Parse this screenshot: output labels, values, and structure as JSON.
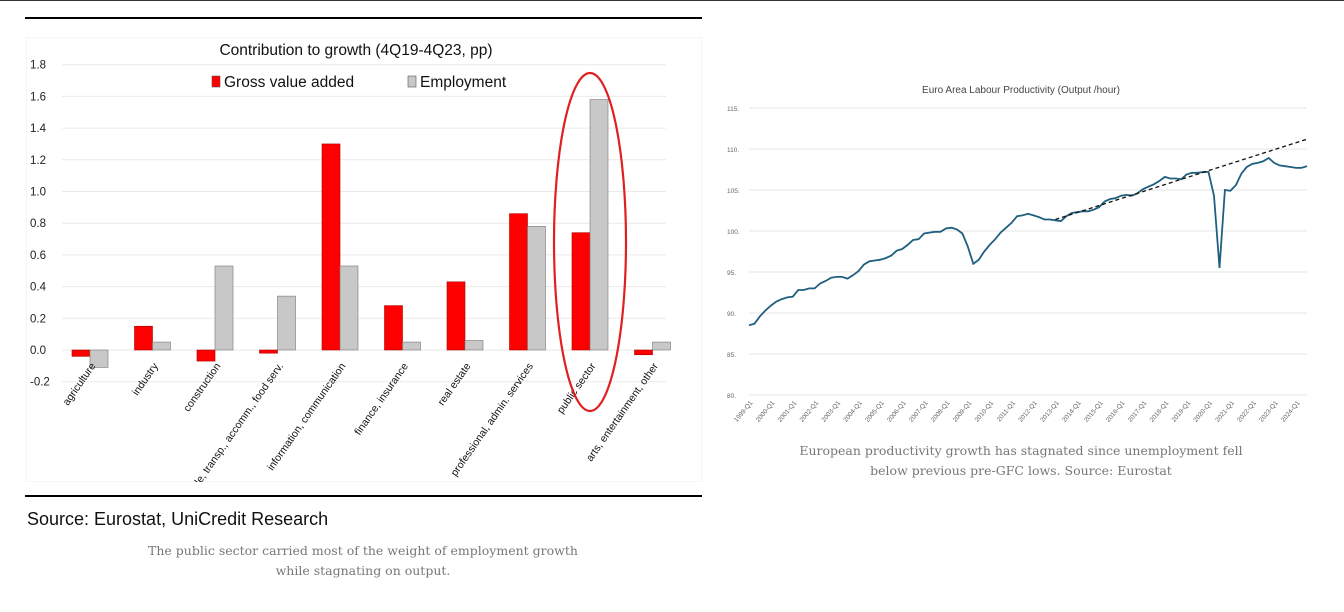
{
  "left_figure": {
    "source": "Source: Eurostat, UniCredit Research",
    "caption": "The public sector carried most of the weight of employment growth while stagnating on output."
  },
  "right_figure": {
    "caption": "European productivity growth has stagnated since unemployment fell below previous pre-GFC lows. Source: Eurostat"
  },
  "chart_data": [
    {
      "type": "bar",
      "title": "Contribution to growth (4Q19-4Q23, pp)",
      "categories": [
        "agriculture",
        "industry",
        "construction",
        "trade, transp., accomm., food serv.",
        "information, communication",
        "finance, insurance",
        "real estate",
        "professional, admin. services",
        "public sector",
        "arts, entertainment, other"
      ],
      "series": [
        {
          "name": "Gross value added",
          "color": "#ff0000",
          "values": [
            -0.04,
            0.15,
            -0.07,
            -0.02,
            1.3,
            0.28,
            0.43,
            0.86,
            0.74,
            -0.03
          ]
        },
        {
          "name": "Employment",
          "color": "#c8c8c8",
          "values": [
            -0.11,
            0.05,
            0.53,
            0.34,
            0.53,
            0.05,
            0.06,
            0.78,
            1.58,
            0.05
          ]
        }
      ],
      "ylim": [
        -0.2,
        1.8
      ],
      "yticks": [
        "-0.2",
        "0.0",
        "0.2",
        "0.4",
        "0.6",
        "0.8",
        "1.0",
        "1.2",
        "1.4",
        "1.6",
        "1.8"
      ],
      "legend": "top-center",
      "highlight": "public sector",
      "highlight_color": "#e02020",
      "grid": true
    },
    {
      "type": "line",
      "title": "Euro Area Labour Productivity (Output /hour)",
      "ylim": [
        80,
        115
      ],
      "yticks": [
        "80.",
        "85.",
        "90.",
        "95.",
        "100.",
        "105.",
        "110.",
        "115."
      ],
      "xticks": [
        "1999-Q1",
        "2000-Q1",
        "2001-Q1",
        "2002-Q1",
        "2003-Q1",
        "2004-Q1",
        "2005-Q1",
        "2006-Q1",
        "2007-Q1",
        "2008-Q1",
        "2009-Q1",
        "2010-Q1",
        "2011-Q1",
        "2012-Q1",
        "2013-Q1",
        "2014-Q1",
        "2015-Q1",
        "2016-Q1",
        "2017-Q1",
        "2018-Q1",
        "2019-Q1",
        "2020-Q1",
        "2021-Q1",
        "2022-Q1",
        "2023-Q1",
        "2024-Q1"
      ],
      "series": [
        {
          "name": "Labour productivity",
          "color": "#1f5f7f",
          "points": [
            [
              1999.0,
              88.5
            ],
            [
              1999.25,
              88.7
            ],
            [
              1999.5,
              89.6
            ],
            [
              1999.75,
              90.3
            ],
            [
              2000.0,
              90.9
            ],
            [
              2000.25,
              91.4
            ],
            [
              2000.5,
              91.7
            ],
            [
              2000.75,
              91.9
            ],
            [
              2001.0,
              92.0
            ],
            [
              2001.25,
              92.8
            ],
            [
              2001.5,
              92.8
            ],
            [
              2001.75,
              93.0
            ],
            [
              2002.0,
              93.0
            ],
            [
              2002.25,
              93.6
            ],
            [
              2002.5,
              93.9
            ],
            [
              2002.75,
              94.3
            ],
            [
              2003.0,
              94.4
            ],
            [
              2003.25,
              94.4
            ],
            [
              2003.5,
              94.2
            ],
            [
              2003.75,
              94.6
            ],
            [
              2004.0,
              95.1
            ],
            [
              2004.25,
              95.9
            ],
            [
              2004.5,
              96.3
            ],
            [
              2004.75,
              96.4
            ],
            [
              2005.0,
              96.5
            ],
            [
              2005.25,
              96.7
            ],
            [
              2005.5,
              97.0
            ],
            [
              2005.75,
              97.6
            ],
            [
              2006.0,
              97.8
            ],
            [
              2006.25,
              98.3
            ],
            [
              2006.5,
              98.9
            ],
            [
              2006.75,
              99.0
            ],
            [
              2007.0,
              99.7
            ],
            [
              2007.25,
              99.8
            ],
            [
              2007.5,
              99.9
            ],
            [
              2007.75,
              99.9
            ],
            [
              2008.0,
              100.3
            ],
            [
              2008.25,
              100.4
            ],
            [
              2008.5,
              100.2
            ],
            [
              2008.75,
              99.7
            ],
            [
              2009.0,
              98.1
            ],
            [
              2009.25,
              96.0
            ],
            [
              2009.5,
              96.5
            ],
            [
              2009.75,
              97.5
            ],
            [
              2010.0,
              98.3
            ],
            [
              2010.25,
              99.0
            ],
            [
              2010.5,
              99.8
            ],
            [
              2010.75,
              100.4
            ],
            [
              2011.0,
              101.0
            ],
            [
              2011.25,
              101.8
            ],
            [
              2011.5,
              101.9
            ],
            [
              2011.75,
              102.1
            ],
            [
              2012.0,
              101.9
            ],
            [
              2012.25,
              101.7
            ],
            [
              2012.5,
              101.4
            ],
            [
              2012.75,
              101.4
            ],
            [
              2013.0,
              101.3
            ],
            [
              2013.25,
              101.2
            ],
            [
              2013.5,
              101.8
            ],
            [
              2013.75,
              102.2
            ],
            [
              2014.0,
              102.3
            ],
            [
              2014.25,
              102.4
            ],
            [
              2014.5,
              102.4
            ],
            [
              2014.75,
              102.6
            ],
            [
              2015.0,
              102.9
            ],
            [
              2015.25,
              103.6
            ],
            [
              2015.5,
              103.9
            ],
            [
              2015.75,
              104.0
            ],
            [
              2016.0,
              104.3
            ],
            [
              2016.25,
              104.4
            ],
            [
              2016.5,
              104.3
            ],
            [
              2016.75,
              104.6
            ],
            [
              2017.0,
              105.1
            ],
            [
              2017.25,
              105.4
            ],
            [
              2017.5,
              105.7
            ],
            [
              2017.75,
              106.1
            ],
            [
              2018.0,
              106.6
            ],
            [
              2018.25,
              106.4
            ],
            [
              2018.5,
              106.4
            ],
            [
              2018.75,
              106.3
            ],
            [
              2019.0,
              106.9
            ],
            [
              2019.25,
              107.1
            ],
            [
              2019.5,
              107.1
            ],
            [
              2019.75,
              107.2
            ],
            [
              2020.0,
              107.2
            ],
            [
              2020.25,
              104.3
            ],
            [
              2020.5,
              95.5
            ],
            [
              2020.75,
              105.0
            ],
            [
              2021.0,
              104.9
            ],
            [
              2021.25,
              105.6
            ],
            [
              2021.5,
              107.0
            ],
            [
              2021.75,
              107.8
            ],
            [
              2022.0,
              108.2
            ],
            [
              2022.25,
              108.3
            ],
            [
              2022.5,
              108.5
            ],
            [
              2022.75,
              108.9
            ],
            [
              2023.0,
              108.3
            ],
            [
              2023.25,
              108.0
            ],
            [
              2023.5,
              107.9
            ],
            [
              2023.75,
              107.8
            ],
            [
              2024.0,
              107.7
            ],
            [
              2024.25,
              107.7
            ],
            [
              2024.5,
              107.9
            ]
          ]
        },
        {
          "name": "Trend",
          "color": "#111111",
          "dashed": true,
          "points": [
            [
              2013.0,
              101.4
            ],
            [
              2024.5,
              111.2
            ]
          ]
        }
      ],
      "grid": true
    }
  ]
}
